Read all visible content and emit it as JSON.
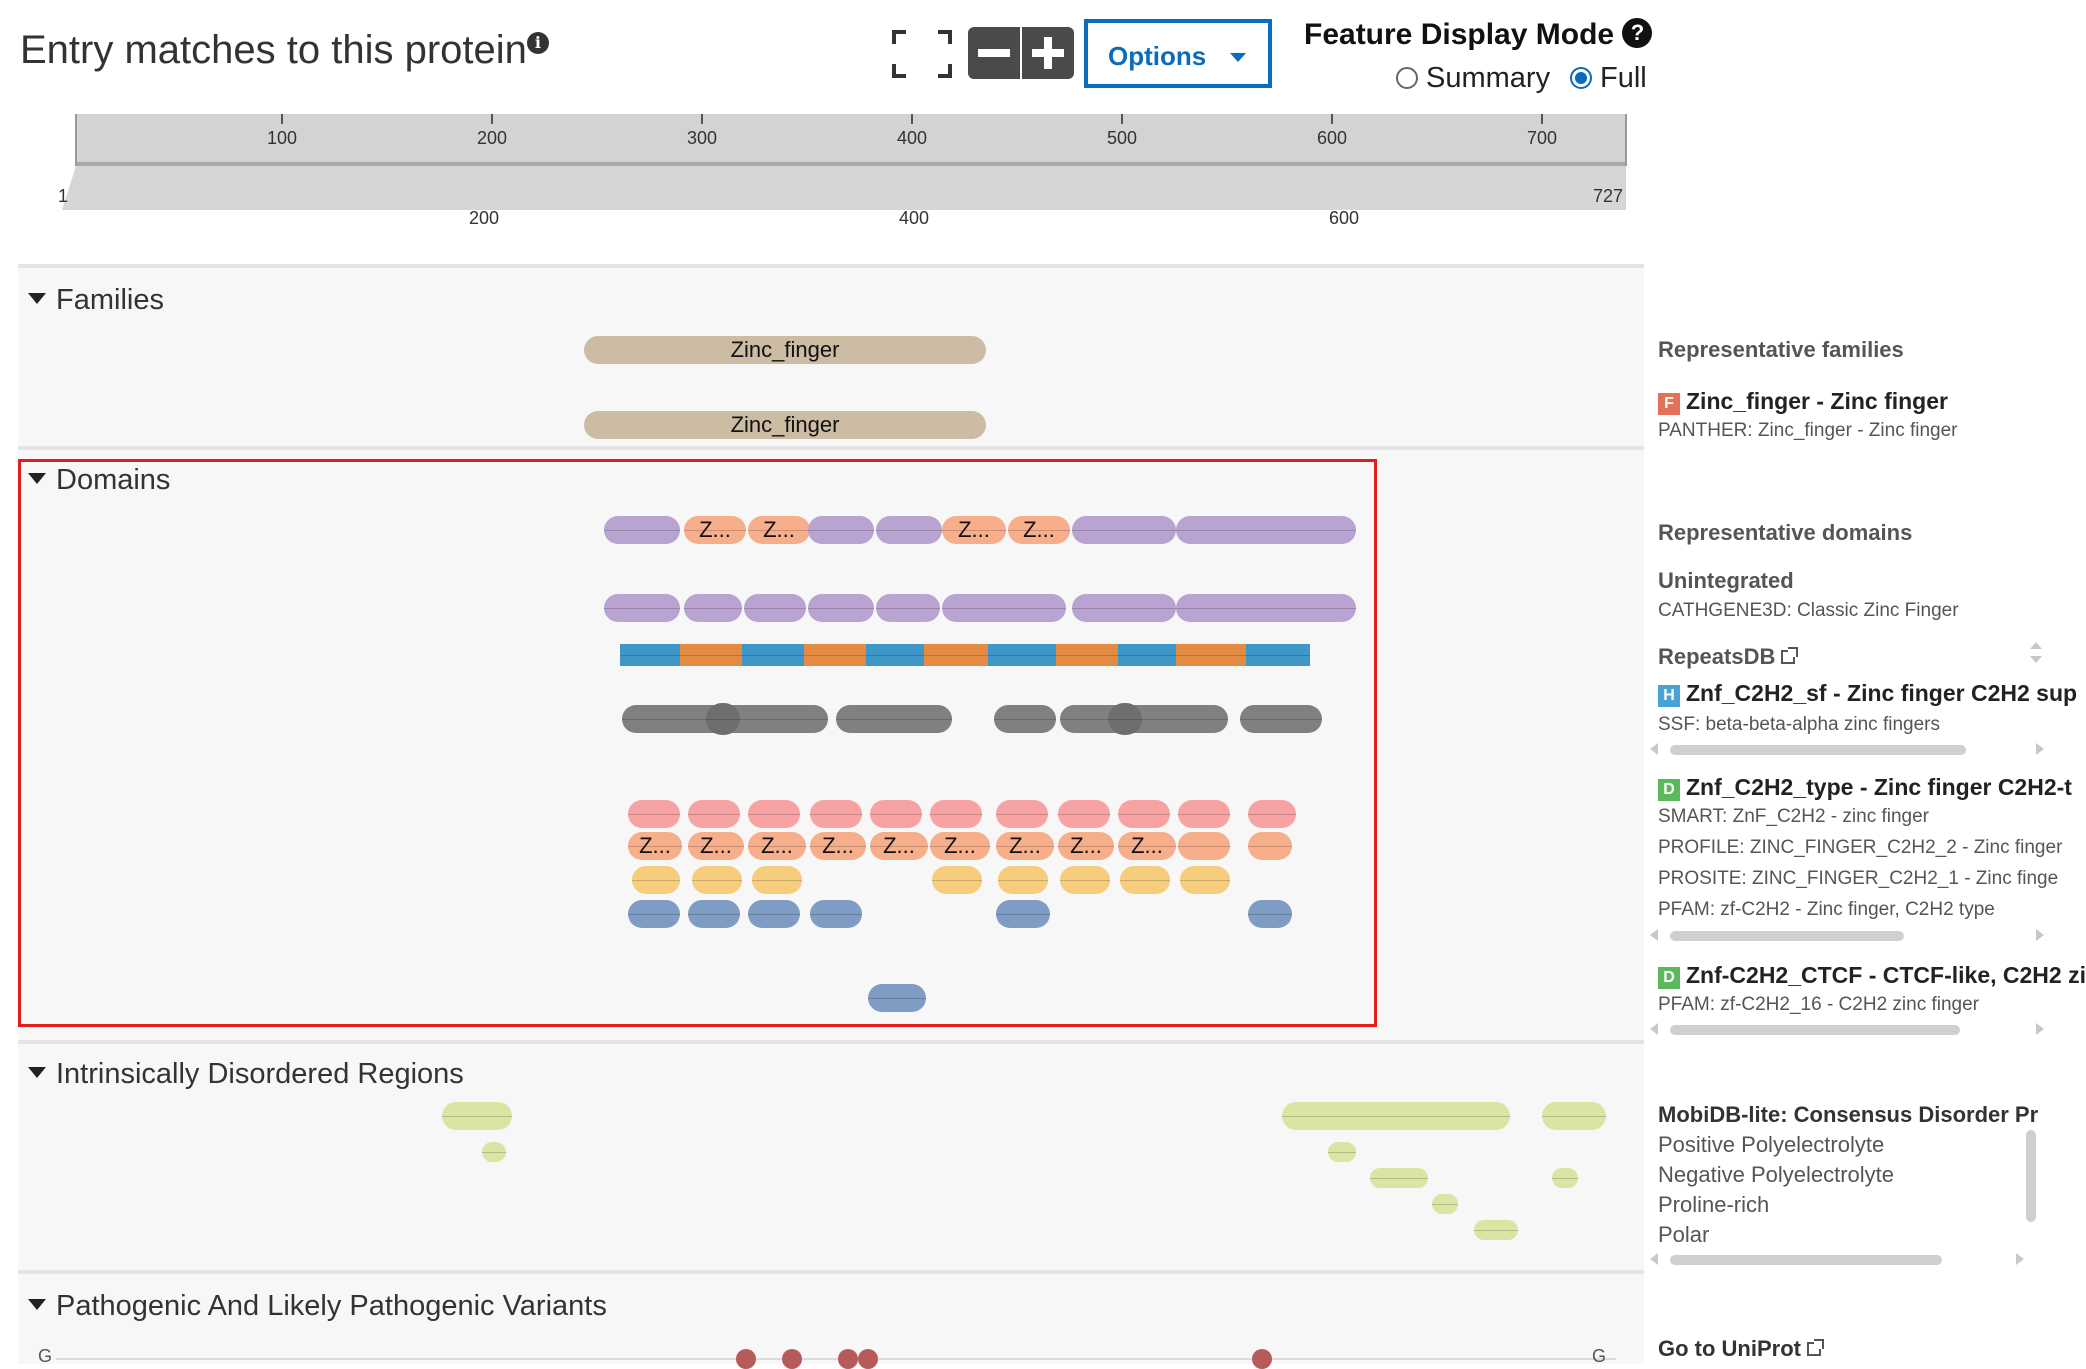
{
  "header": {
    "title": "Entry matches to this protein",
    "options_label": "Options",
    "display_mode_title": "Feature Display Mode",
    "mode_summary": "Summary",
    "mode_full": "Full",
    "selected_mode": "Full"
  },
  "ruler": {
    "top_ticks": [
      "100",
      "200",
      "300",
      "400",
      "500",
      "600",
      "700"
    ],
    "bottom_start": "1",
    "bottom_end": "727",
    "bottom_ticks": [
      "200",
      "400",
      "600"
    ]
  },
  "sections": {
    "families": "Families",
    "domains": "Domains",
    "disordered": "Intrinsically Disordered Regions",
    "variants": "Pathogenic And Likely Pathogenic Variants"
  },
  "tracks": {
    "family_label_1": "Zinc_finger",
    "family_label_2": "Zinc_finger",
    "domain_short_label": "Z...",
    "variant_end_left": "G",
    "variant_end_right": "G"
  },
  "colors": {
    "family": "#cdbca4",
    "purple": "#b9a3d1",
    "salmon": "#f6ae8b",
    "pink": "#f8a3a3",
    "yellow": "#f5cd7c",
    "blue": "#7f9dc4",
    "gray": "#808080",
    "repeat_blue": "#3e97c7",
    "repeat_orange": "#e38b43",
    "disorder": "#dce4a4",
    "variant": "#b65a5a"
  },
  "right_panel": {
    "rep_families_head": "Representative families",
    "family_entry": "Zinc_finger - Zinc finger",
    "family_sub": "PANTHER: Zinc_finger - Zinc finger",
    "rep_domains_head": "Representative domains",
    "unintegrated_head": "Unintegrated",
    "unintegrated_sub": "CATHGENE3D: Classic Zinc Finger",
    "repeatsdb_head": "RepeatsDB",
    "entry_h": "Znf_C2H2_sf - Zinc finger C2H2 sup",
    "entry_h_sub": "SSF: beta-beta-alpha zinc fingers",
    "entry_d1": "Znf_C2H2_type - Zinc finger C2H2-t",
    "entry_d1_subs": [
      "SMART: ZnF_C2H2 - zinc finger",
      "PROFILE: ZINC_FINGER_C2H2_2 - Zinc finger",
      "PROSITE: ZINC_FINGER_C2H2_1 - Zinc finge",
      "PFAM: zf-C2H2 - Zinc finger, C2H2 type"
    ],
    "entry_d2": "Znf-C2H2_CTCF - CTCF-like, C2H2 zi",
    "entry_d2_sub": "PFAM: zf-C2H2_16 - C2H2 zinc finger",
    "mobidb_head": "MobiDB-lite: Consensus Disorder Pr",
    "mobidb_items": [
      "Positive Polyelectrolyte",
      "Negative Polyelectrolyte",
      "Proline-rich",
      "Polar"
    ],
    "badge_f": "F",
    "badge_h": "H",
    "badge_d": "D",
    "uniprot_link": "Go to UniProt"
  }
}
